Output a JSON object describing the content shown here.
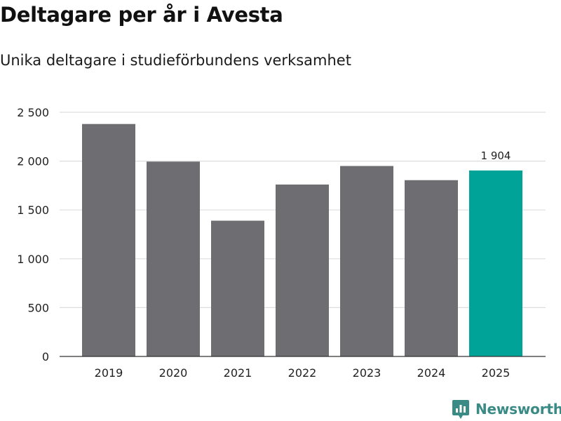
{
  "title": "Deltagare per år i Avesta",
  "subtitle": "Unika deltagare i studieförbundens verksamhet",
  "brand": {
    "name": "Newsworthy",
    "logo_icon": "newsworthy-chart-icon"
  },
  "colors": {
    "bar": "#6e6d72",
    "highlight": "#00a398",
    "grid": "#dddddd",
    "axis": "#333333",
    "text": "#222222",
    "brand": "#3a8a85"
  },
  "chart_data": {
    "type": "bar",
    "title": "Deltagare per år i Avesta",
    "subtitle": "Unika deltagare i studieförbundens verksamhet",
    "xlabel": "",
    "ylabel": "",
    "categories": [
      "2019",
      "2020",
      "2021",
      "2022",
      "2023",
      "2024",
      "2025"
    ],
    "values": [
      2380,
      1995,
      1390,
      1760,
      1950,
      1805,
      1904
    ],
    "highlight_index": 6,
    "data_labels": [
      {
        "index": 6,
        "text": "1 904"
      }
    ],
    "ylim": [
      0,
      2500
    ],
    "yticks": [
      0,
      500,
      1000,
      1500,
      2000,
      2500
    ],
    "ytick_labels": [
      "0",
      "500",
      "1 000",
      "1 500",
      "2 000",
      "2 500"
    ],
    "grid": true
  }
}
